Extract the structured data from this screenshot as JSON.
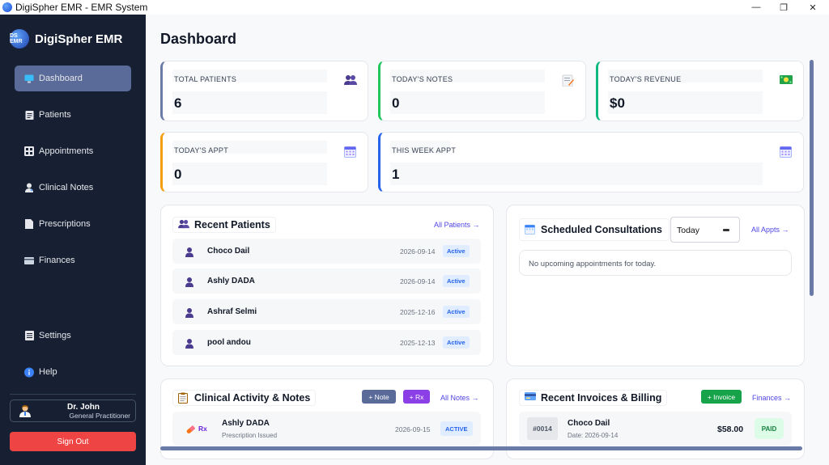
{
  "window": {
    "title": "DigiSpher EMR - EMR System",
    "minimize_glyph": "—",
    "maximize_glyph": "❐",
    "close_glyph": "✕"
  },
  "sidebar": {
    "brand_logo": "DS EMR",
    "brand_name": "DigiSpher EMR",
    "items": [
      {
        "label": "Dashboard",
        "icon": "monitor-icon",
        "active": true
      },
      {
        "label": "Patients",
        "icon": "clipboard-icon",
        "active": false
      },
      {
        "label": "Appointments",
        "icon": "grid-icon",
        "active": false
      },
      {
        "label": "Clinical Notes",
        "icon": "doctor-icon",
        "active": false
      },
      {
        "label": "Prescriptions",
        "icon": "page-icon",
        "active": false
      },
      {
        "label": "Finances",
        "icon": "card-icon",
        "active": false
      }
    ],
    "bottom_items": [
      {
        "label": "Settings",
        "icon": "list-icon"
      },
      {
        "label": "Help",
        "icon": "info-icon"
      }
    ],
    "user": {
      "name": "Dr. John",
      "role": "General Practitioner"
    },
    "signout_label": "Sign Out"
  },
  "main": {
    "page_title": "Dashboard",
    "stats": [
      {
        "label": "TOTAL PATIENTS",
        "value": "6",
        "icon": "users-icon",
        "accent": "#6b7ba8"
      },
      {
        "label": "TODAY'S NOTES",
        "value": "0",
        "icon": "memo-icon",
        "accent": "#22c55e"
      },
      {
        "label": "TODAY'S REVENUE",
        "value": "$0",
        "icon": "money-icon",
        "accent": "#10b981"
      },
      {
        "label": "TODAY'S APPT",
        "value": "0",
        "icon": "calendar-icon",
        "accent": "#f59e0b"
      },
      {
        "label": "THIS WEEK APPT",
        "value": "1",
        "icon": "calendar-icon",
        "accent": "#2563eb"
      }
    ],
    "recent_patients": {
      "title": "Recent Patients",
      "link": "All Patients →",
      "rows": [
        {
          "name": "Choco Dail",
          "date": "2026-09-14",
          "status": "Active"
        },
        {
          "name": "Ashly DADA",
          "date": "2026-09-14",
          "status": "Active"
        },
        {
          "name": "Ashraf Selmi",
          "date": "2025-12-16",
          "status": "Active"
        },
        {
          "name": "pool andou",
          "date": "2025-12-13",
          "status": "Active"
        }
      ]
    },
    "consultations": {
      "title": "Scheduled Consultations",
      "filter_value": "Today",
      "link": "All Appts →",
      "empty_text": "No upcoming appointments for today."
    },
    "clinical": {
      "title": "Clinical Activity & Notes",
      "btn_note": "+ Note",
      "btn_rx": "+ Rx",
      "link": "All Notes →",
      "row": {
        "tag": "Rx",
        "name": "Ashly DADA",
        "sub": "Prescription Issued",
        "date": "2026-09-15",
        "status": "ACTIVE"
      }
    },
    "invoices": {
      "title": "Recent Invoices & Billing",
      "btn_invoice": "+ Invoice",
      "link": "Finances →",
      "row": {
        "number": "#0014",
        "name": "Choco Dail",
        "date": "Date: 2026-09-14",
        "amount": "$58.00",
        "status": "PAID"
      }
    }
  }
}
